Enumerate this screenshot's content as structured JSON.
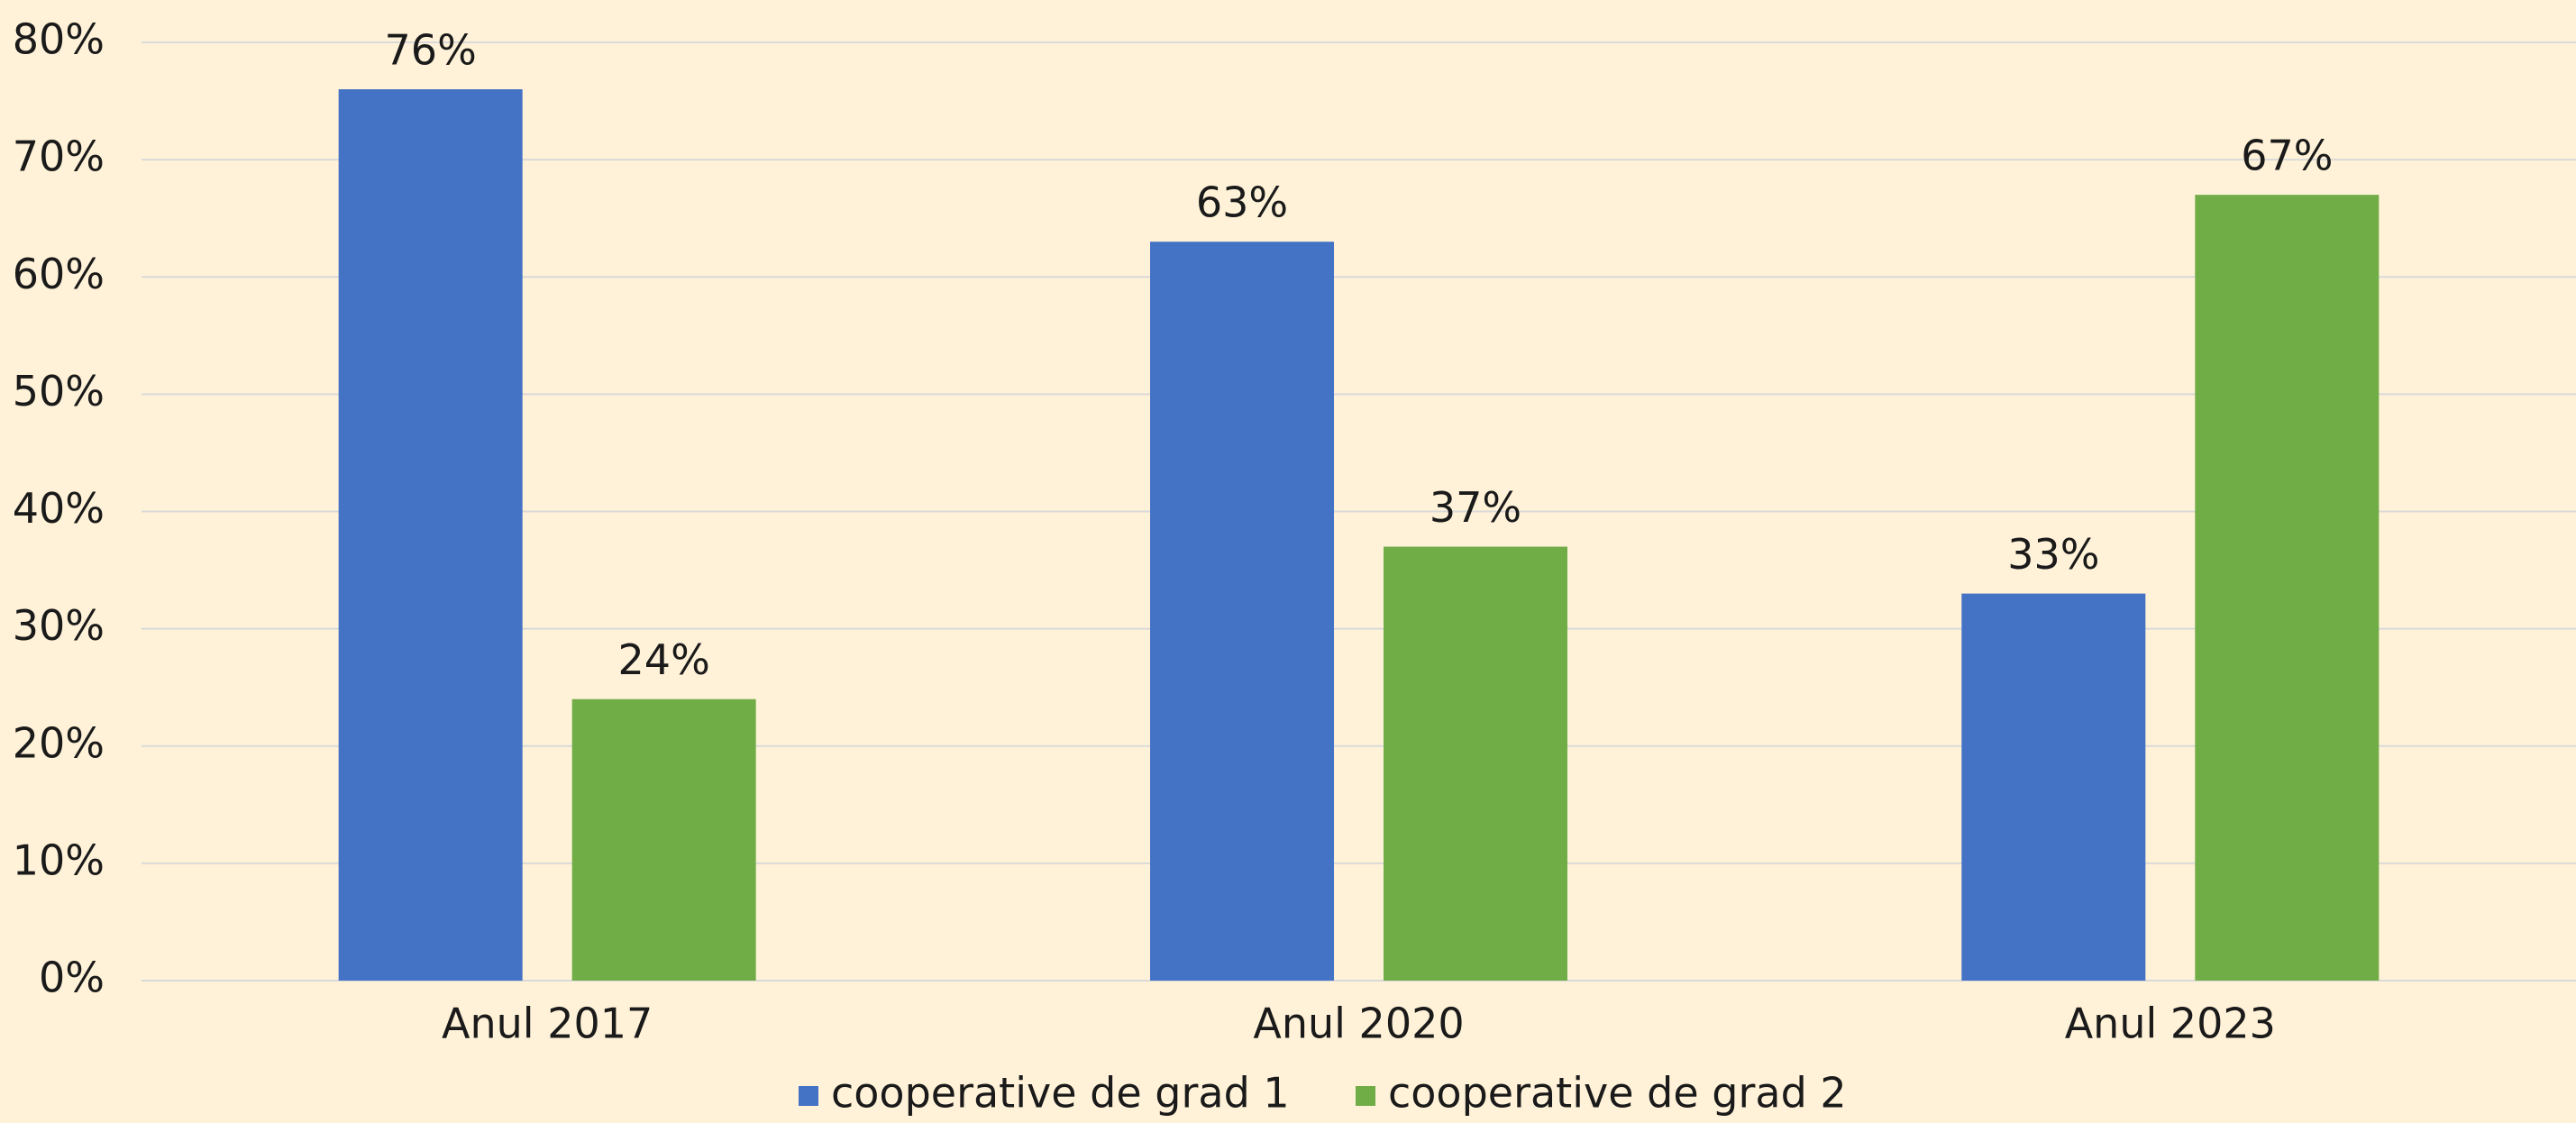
{
  "chart_data": {
    "type": "bar",
    "categories": [
      "Anul 2017",
      "Anul 2020",
      "Anul 2023"
    ],
    "series": [
      {
        "name": "cooperative de grad 1",
        "color": "#4472c4",
        "values": [
          76,
          63,
          33
        ],
        "value_labels": [
          "76%",
          "63%",
          "33%"
        ]
      },
      {
        "name": "cooperative de grad 2",
        "color": "#70ad47",
        "values": [
          24,
          37,
          67
        ],
        "value_labels": [
          "24%",
          "37%",
          "67%"
        ]
      }
    ],
    "ylim": [
      0,
      80
    ],
    "yticks": [
      {
        "value": 0,
        "label": "0%"
      },
      {
        "value": 10,
        "label": "10%"
      },
      {
        "value": 20,
        "label": "20%"
      },
      {
        "value": 30,
        "label": "30%"
      },
      {
        "value": 40,
        "label": "40%"
      },
      {
        "value": 50,
        "label": "50%"
      },
      {
        "value": 60,
        "label": "60%"
      },
      {
        "value": 70,
        "label": "70%"
      },
      {
        "value": 80,
        "label": "80%"
      }
    ],
    "grid": true,
    "legend": "bottom"
  }
}
